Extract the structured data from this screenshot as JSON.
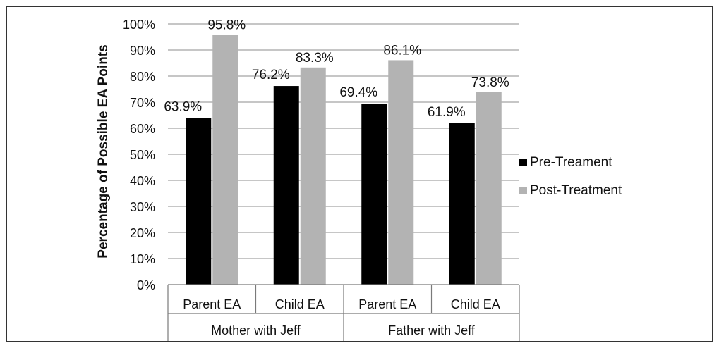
{
  "chart_data": {
    "type": "bar",
    "ylabel": "Percentage of Possible EA Points",
    "ylim": [
      0,
      100
    ],
    "yticks": [
      0,
      10,
      20,
      30,
      40,
      50,
      60,
      70,
      80,
      90,
      100
    ],
    "ytick_labels": [
      "0%",
      "10%",
      "20%",
      "30%",
      "40%",
      "50%",
      "60%",
      "70%",
      "80%",
      "90%",
      "100%"
    ],
    "grid": true,
    "legend_position": "right",
    "categories": [
      "Parent EA",
      "Child EA",
      "Parent EA",
      "Child EA"
    ],
    "groups": [
      {
        "label": "Mother with Jeff",
        "span": [
          0,
          1
        ]
      },
      {
        "label": "Father with Jeff",
        "span": [
          2,
          3
        ]
      }
    ],
    "series": [
      {
        "name": "Pre-Treament",
        "color": "#000000",
        "values": [
          63.9,
          76.2,
          69.4,
          61.9
        ],
        "labels": [
          "63.9%",
          "76.2%",
          "69.4%",
          "61.9%"
        ]
      },
      {
        "name": "Post-Treatment",
        "color": "#b3b3b3",
        "values": [
          95.8,
          83.3,
          86.1,
          73.8
        ],
        "labels": [
          "95.8%",
          "83.3%",
          "86.1%",
          "73.8%"
        ]
      }
    ]
  }
}
